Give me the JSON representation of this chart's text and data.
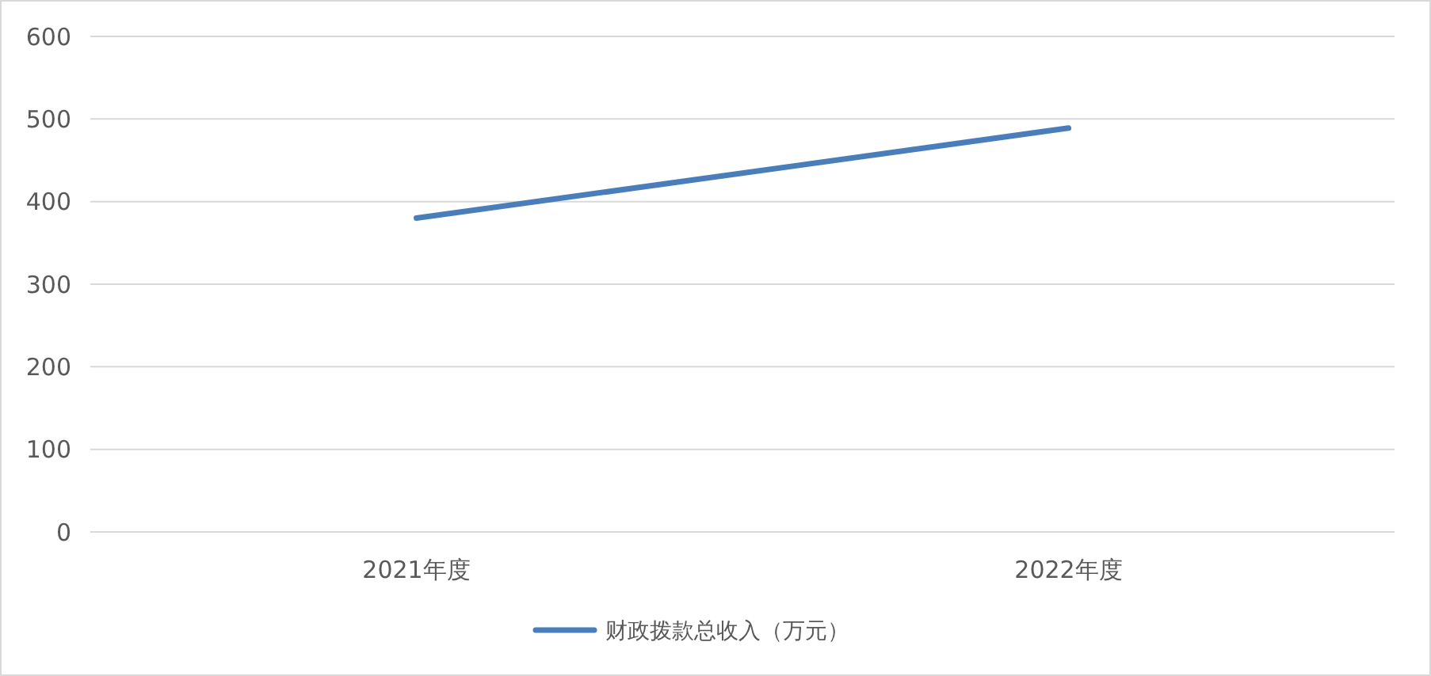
{
  "chart_data": {
    "type": "line",
    "categories": [
      "2021年度",
      "2022年度"
    ],
    "series": [
      {
        "name": "财政拨款总收入（万元）",
        "color": "#4a7ebb",
        "values": [
          380,
          489
        ]
      }
    ],
    "ylim": [
      0,
      600
    ],
    "yticks": [
      0,
      100,
      200,
      300,
      400,
      500,
      600
    ],
    "grid": "y",
    "legend": "bottom",
    "marker": "none",
    "line_style": "solid"
  }
}
